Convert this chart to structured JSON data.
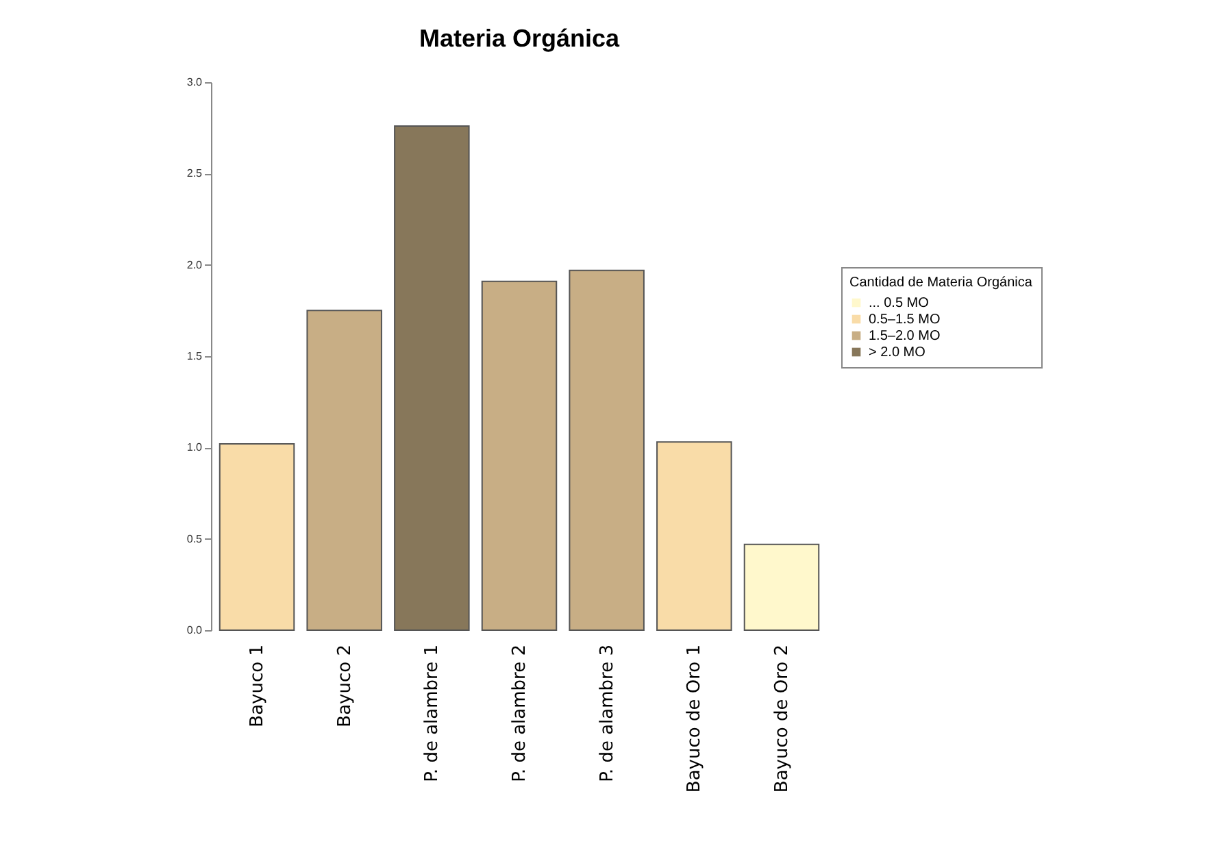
{
  "chart_data": {
    "type": "bar",
    "title": "Materia Orgánica",
    "stacked": true,
    "categories": [
      "Bayuco 1",
      "Bayuco 2",
      "P. de alambre 1",
      "P. de alambre 2",
      "P. de alambre 3",
      "Bayuco de Oro 1",
      "Bayuco de Oro 2"
    ],
    "series": [
      {
        "name": "... 0.5 MO",
        "color": "#fff8cc",
        "values": [
          null,
          null,
          null,
          null,
          null,
          null,
          0.47
        ]
      },
      {
        "name": "0.5–1.5 MO",
        "color": "#f9dca8",
        "values": [
          1.02,
          null,
          null,
          null,
          null,
          1.03,
          null
        ]
      },
      {
        "name": "1.5–2.0 MO",
        "color": "#c8ae85",
        "values": [
          null,
          1.75,
          null,
          1.91,
          1.97,
          null,
          null
        ]
      },
      {
        "name": "> 2.0 MO",
        "color": "#87775a",
        "values": [
          null,
          null,
          2.76,
          null,
          null,
          null,
          null
        ]
      }
    ],
    "legend_title": "Cantidad de Materia Orgánica",
    "legend": "right",
    "ylim": [
      0,
      3
    ],
    "yticks": [
      {
        "value": 0,
        "label": "0.0"
      },
      {
        "value": 0.5,
        "label": "0.5"
      },
      {
        "value": 1,
        "label": "1.0"
      },
      {
        "value": 1.5,
        "label": "1.5"
      },
      {
        "value": 2,
        "label": "2.0"
      },
      {
        "value": 2.5,
        "label": "2.5"
      },
      {
        "value": 3,
        "label": "3.0"
      }
    ],
    "grid": false
  }
}
